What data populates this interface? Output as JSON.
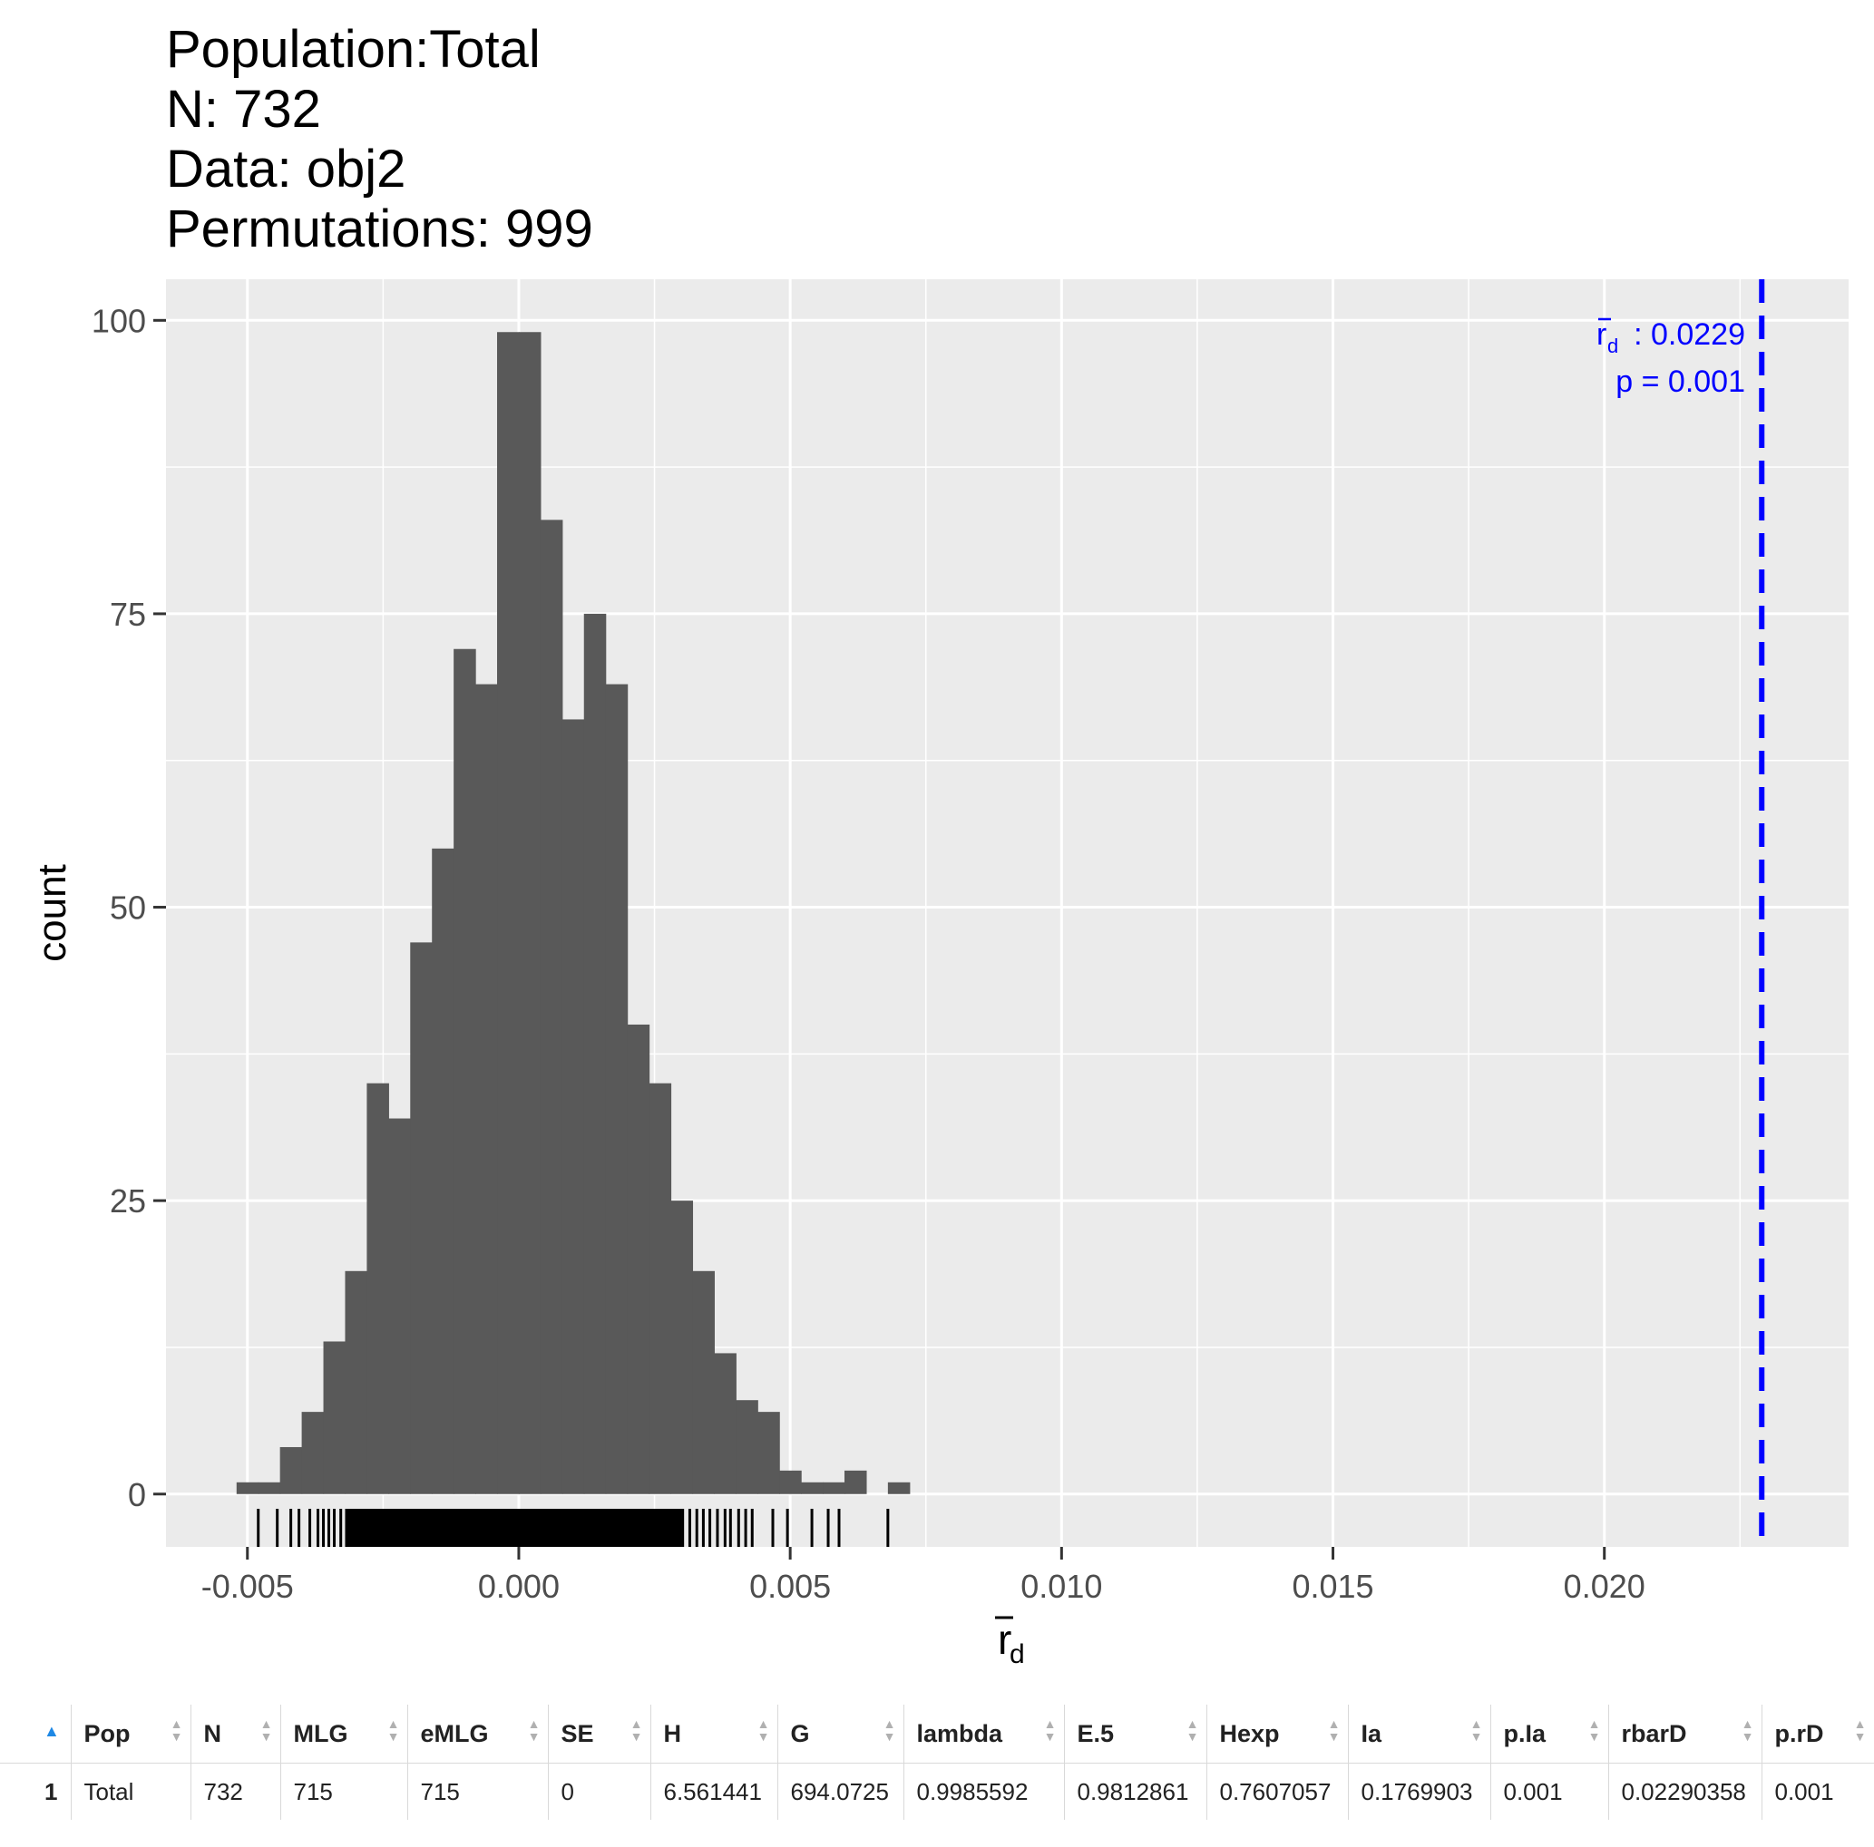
{
  "title_lines": [
    "Population:Total",
    "N: 732",
    "Data: obj2",
    "Permutations: 999"
  ],
  "chart_data": {
    "type": "histogram",
    "xlabel": "r̄d",
    "ylabel": "count",
    "xlim": [
      -0.0065,
      0.0245
    ],
    "ylim": [
      -4.5,
      103.5
    ],
    "x_ticks": [
      -0.005,
      0.0,
      0.005,
      0.01,
      0.015,
      0.02
    ],
    "x_tick_labels": [
      "-0.005",
      "0.000",
      "0.005",
      "0.010",
      "0.015",
      "0.020"
    ],
    "y_ticks": [
      0,
      25,
      50,
      75,
      100
    ],
    "y_tick_labels": [
      "0",
      "25",
      "50",
      "75",
      "100"
    ],
    "grid": true,
    "bin_width": 0.0004,
    "bins": [
      {
        "x0": -0.0052,
        "count": 1
      },
      {
        "x0": -0.0048,
        "count": 1
      },
      {
        "x0": -0.0044,
        "count": 4
      },
      {
        "x0": -0.004,
        "count": 7
      },
      {
        "x0": -0.0036,
        "count": 13
      },
      {
        "x0": -0.0032,
        "count": 19
      },
      {
        "x0": -0.0028,
        "count": 35
      },
      {
        "x0": -0.0024,
        "count": 32
      },
      {
        "x0": -0.002,
        "count": 47
      },
      {
        "x0": -0.0016,
        "count": 55
      },
      {
        "x0": -0.0012,
        "count": 72
      },
      {
        "x0": -0.0008,
        "count": 69
      },
      {
        "x0": -0.0004,
        "count": 99
      },
      {
        "x0": 0.0,
        "count": 99
      },
      {
        "x0": 0.0004,
        "count": 83
      },
      {
        "x0": 0.0008,
        "count": 66
      },
      {
        "x0": 0.0012,
        "count": 75
      },
      {
        "x0": 0.0016,
        "count": 69
      },
      {
        "x0": 0.002,
        "count": 40
      },
      {
        "x0": 0.0024,
        "count": 35
      },
      {
        "x0": 0.0028,
        "count": 25
      },
      {
        "x0": 0.0032,
        "count": 19
      },
      {
        "x0": 0.0036,
        "count": 12
      },
      {
        "x0": 0.004,
        "count": 8
      },
      {
        "x0": 0.0044,
        "count": 7
      },
      {
        "x0": 0.0048,
        "count": 2
      },
      {
        "x0": 0.0052,
        "count": 1
      },
      {
        "x0": 0.0056,
        "count": 1
      },
      {
        "x0": 0.006,
        "count": 2
      },
      {
        "x0": 0.0064,
        "count": 0
      },
      {
        "x0": 0.0068,
        "count": 1
      }
    ],
    "rug_sparse": [
      -0.0048,
      -0.00445,
      -0.0042,
      -0.00405,
      -0.00385,
      -0.0037,
      -0.0036,
      -0.0035,
      -0.0034,
      -0.00328,
      0.00302,
      0.00315,
      0.00328,
      0.0034,
      0.00352,
      0.00366,
      0.0038,
      0.0039,
      0.00405,
      0.00418,
      0.0043,
      0.00468,
      0.00495,
      0.0054,
      0.0057,
      0.0059,
      0.0068
    ],
    "rug_dense_range": [
      -0.0032,
      0.003
    ],
    "observed_line": {
      "x": 0.0229,
      "color": "#0000ff",
      "dash": true
    },
    "annotation": {
      "rd_value": ": 0.0229",
      "p_value": "p = 0.001",
      "color": "#0000ff"
    },
    "colors": {
      "panel": "#ebebeb",
      "grid": "#ffffff",
      "bar": "#595959",
      "rug": "#000000"
    }
  },
  "table": {
    "headers": [
      "Pop",
      "N",
      "MLG",
      "eMLG",
      "SE",
      "H",
      "G",
      "lambda",
      "E.5",
      "Hexp",
      "Ia",
      "p.Ia",
      "rbarD",
      "p.rD"
    ],
    "rows": [
      {
        "index": "1",
        "cells": [
          "Total",
          "732",
          "715",
          "715",
          "0",
          "6.561441",
          "694.0725",
          "0.9985592",
          "0.9812861",
          "0.7607057",
          "0.1769903",
          "0.001",
          "0.02290358",
          "0.001"
        ]
      }
    ]
  }
}
